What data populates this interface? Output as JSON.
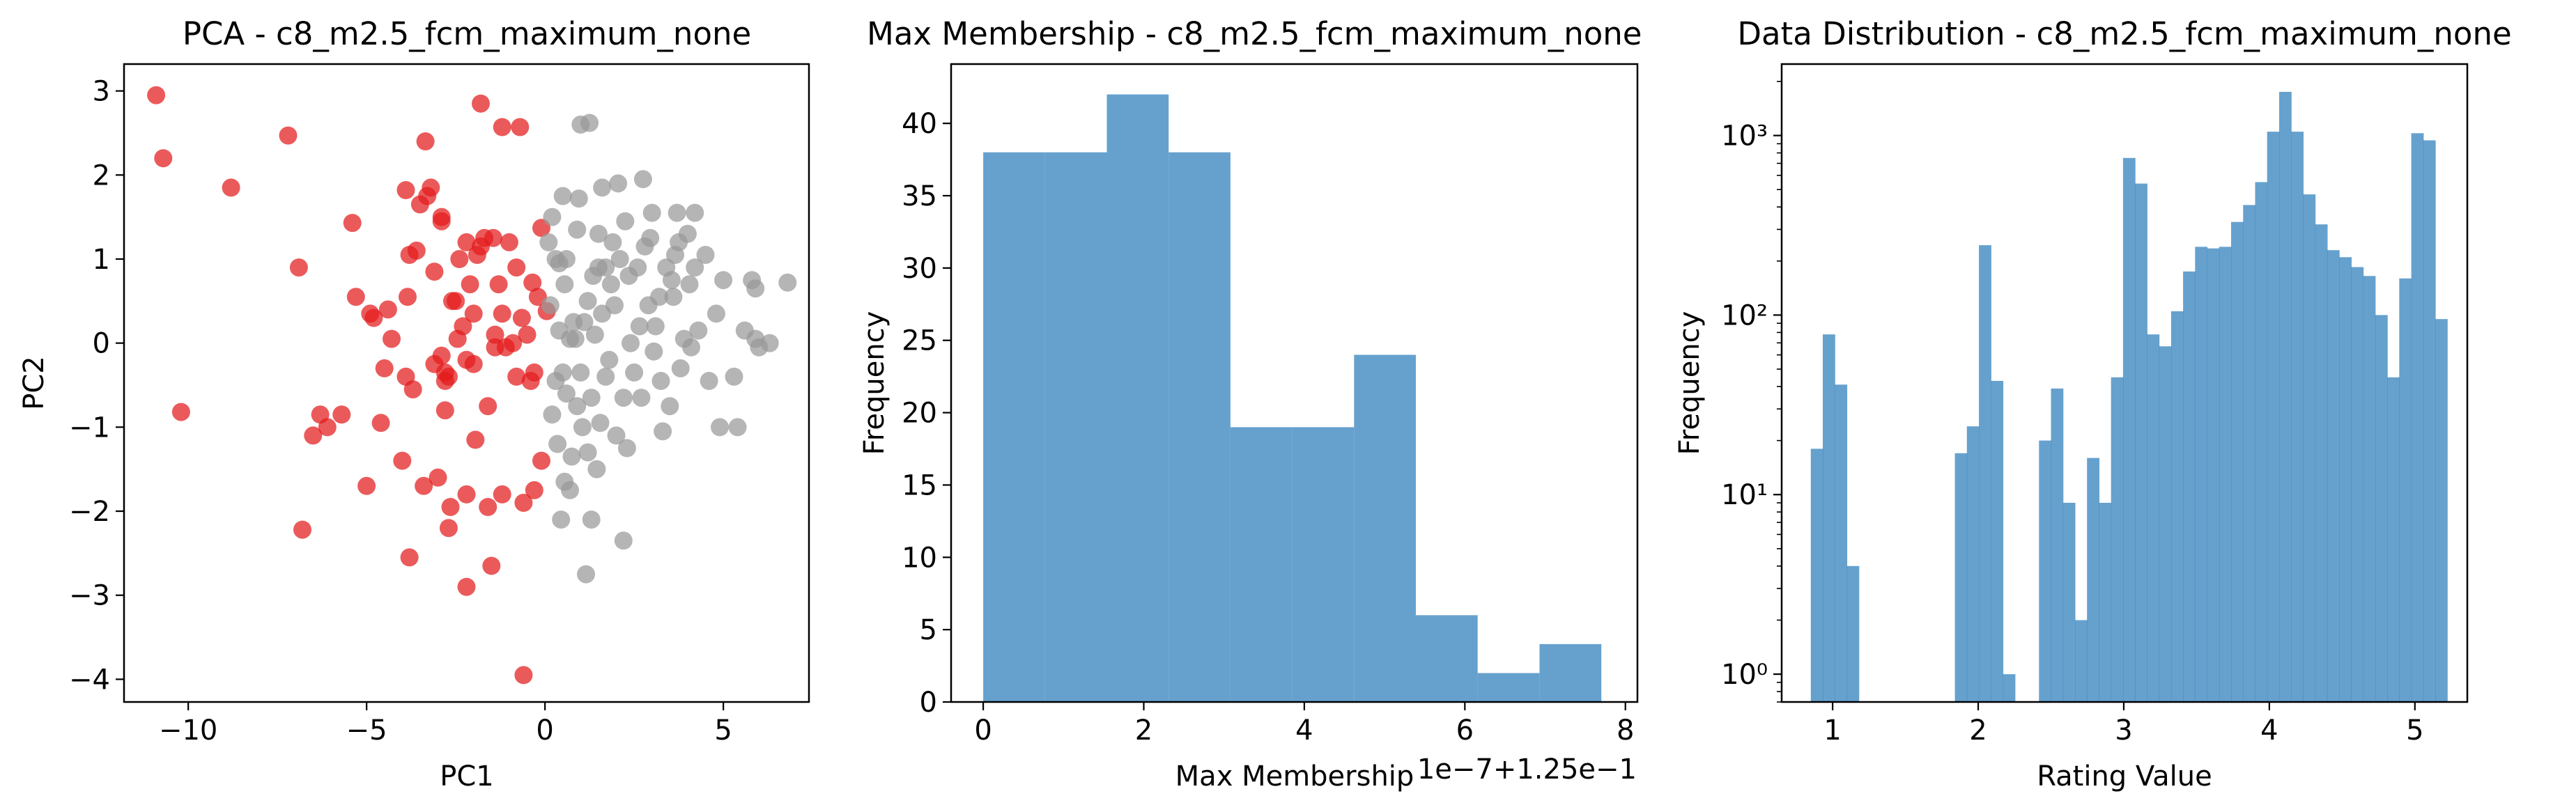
{
  "figure": {
    "colors": {
      "red": "#e31a1c",
      "gray": "#999999",
      "blue": "#3b87c0"
    }
  },
  "chart_data": [
    {
      "type": "scatter",
      "title": "PCA - c8_m2.5_fcm_maximum_none",
      "xlabel": "PC1",
      "ylabel": "PC2",
      "xlim": [
        -11.8,
        7.4
      ],
      "ylim": [
        -4.27,
        3.32
      ],
      "xticks": [
        -10,
        -5,
        0,
        5
      ],
      "yticks": [
        -4,
        -3,
        -2,
        -1,
        0,
        1,
        2,
        3
      ],
      "series": [
        {
          "color": "#e31a1c",
          "points": [
            [
              -10.9,
              2.95
            ],
            [
              -10.7,
              2.2
            ],
            [
              -10.2,
              -0.82
            ],
            [
              -8.8,
              1.85
            ],
            [
              -7.2,
              2.47
            ],
            [
              -6.9,
              0.9
            ],
            [
              -6.8,
              -2.22
            ],
            [
              -6.5,
              -1.1
            ],
            [
              -6.3,
              -0.85
            ],
            [
              -6.1,
              -1.0
            ],
            [
              -5.7,
              -0.85
            ],
            [
              -5.4,
              1.43
            ],
            [
              -5.3,
              0.55
            ],
            [
              -5.0,
              -1.7
            ],
            [
              -4.9,
              0.35
            ],
            [
              -4.8,
              0.3
            ],
            [
              -4.6,
              -0.95
            ],
            [
              -4.5,
              -0.3
            ],
            [
              -4.4,
              0.4
            ],
            [
              -4.3,
              0.05
            ],
            [
              -4.0,
              -1.4
            ],
            [
              -3.9,
              -0.4
            ],
            [
              -3.85,
              0.55
            ],
            [
              -3.8,
              1.05
            ],
            [
              -3.8,
              -2.55
            ],
            [
              -3.7,
              -0.55
            ],
            [
              -3.6,
              1.1
            ],
            [
              -3.9,
              1.82
            ],
            [
              -3.5,
              1.65
            ],
            [
              -3.4,
              -1.7
            ],
            [
              -3.35,
              2.4
            ],
            [
              -3.3,
              1.75
            ],
            [
              -3.2,
              1.85
            ],
            [
              -3.1,
              -0.25
            ],
            [
              -3.1,
              0.85
            ],
            [
              -3.0,
              -1.6
            ],
            [
              -2.9,
              -0.15
            ],
            [
              -2.9,
              1.45
            ],
            [
              -2.9,
              1.5
            ],
            [
              -2.8,
              -0.35
            ],
            [
              -2.8,
              -0.45
            ],
            [
              -2.8,
              -0.8
            ],
            [
              -2.7,
              -0.4
            ],
            [
              -2.7,
              -2.2
            ],
            [
              -2.65,
              -1.95
            ],
            [
              -2.6,
              0.5
            ],
            [
              -2.5,
              0.5
            ],
            [
              -2.45,
              0.05
            ],
            [
              -2.4,
              1.0
            ],
            [
              -2.3,
              0.2
            ],
            [
              -2.2,
              -1.8
            ],
            [
              -2.2,
              -2.9
            ],
            [
              -2.2,
              -0.2
            ],
            [
              -2.2,
              1.2
            ],
            [
              -2.1,
              0.7
            ],
            [
              -2.0,
              0.35
            ],
            [
              -2.0,
              -0.25
            ],
            [
              -1.95,
              -1.15
            ],
            [
              -1.9,
              1.05
            ],
            [
              -1.8,
              1.15
            ],
            [
              -1.8,
              2.85
            ],
            [
              -1.7,
              1.25
            ],
            [
              -1.6,
              -1.95
            ],
            [
              -1.6,
              -0.75
            ],
            [
              -1.5,
              -2.65
            ],
            [
              -1.45,
              1.25
            ],
            [
              -1.4,
              0.1
            ],
            [
              -1.4,
              -0.05
            ],
            [
              -1.3,
              0.7
            ],
            [
              -1.2,
              -1.8
            ],
            [
              -1.2,
              2.57
            ],
            [
              -1.2,
              0.35
            ],
            [
              -1.1,
              -0.05
            ],
            [
              -1.0,
              1.2
            ],
            [
              -0.9,
              0.0
            ],
            [
              -0.8,
              -0.4
            ],
            [
              -0.8,
              0.9
            ],
            [
              -0.7,
              2.57
            ],
            [
              -0.65,
              0.3
            ],
            [
              -0.6,
              -1.9
            ],
            [
              -0.5,
              0.1
            ],
            [
              -0.4,
              -0.45
            ],
            [
              -0.3,
              -0.35
            ],
            [
              -0.2,
              0.55
            ],
            [
              -0.1,
              1.37
            ],
            [
              -0.1,
              -1.4
            ],
            [
              -0.6,
              -3.95
            ],
            [
              -0.3,
              -1.75
            ],
            [
              0.05,
              0.38
            ],
            [
              -0.35,
              0.72
            ]
          ]
        },
        {
          "color": "#999999",
          "points": [
            [
              0.1,
              1.2
            ],
            [
              0.2,
              1.5
            ],
            [
              0.15,
              0.45
            ],
            [
              0.2,
              -0.85
            ],
            [
              0.3,
              -0.45
            ],
            [
              0.3,
              1.0
            ],
            [
              0.35,
              -1.2
            ],
            [
              0.4,
              0.15
            ],
            [
              0.4,
              0.95
            ],
            [
              0.45,
              -2.1
            ],
            [
              0.5,
              -0.35
            ],
            [
              0.5,
              1.75
            ],
            [
              0.55,
              -1.65
            ],
            [
              0.55,
              0.7
            ],
            [
              0.6,
              1.0
            ],
            [
              0.6,
              -0.6
            ],
            [
              0.7,
              -1.75
            ],
            [
              0.7,
              0.05
            ],
            [
              0.75,
              -1.35
            ],
            [
              0.8,
              0.25
            ],
            [
              0.9,
              1.35
            ],
            [
              0.9,
              -0.75
            ],
            [
              0.95,
              1.72
            ],
            [
              1.0,
              -0.35
            ],
            [
              1.05,
              -1.0
            ],
            [
              1.0,
              2.6
            ],
            [
              1.1,
              0.25
            ],
            [
              1.15,
              -2.75
            ],
            [
              1.2,
              -1.3
            ],
            [
              1.2,
              0.5
            ],
            [
              1.25,
              2.62
            ],
            [
              1.3,
              -0.65
            ],
            [
              1.3,
              -2.1
            ],
            [
              1.35,
              0.8
            ],
            [
              1.4,
              0.1
            ],
            [
              1.45,
              -1.5
            ],
            [
              1.5,
              1.3
            ],
            [
              1.55,
              -0.95
            ],
            [
              1.6,
              0.35
            ],
            [
              1.6,
              1.85
            ],
            [
              1.7,
              0.9
            ],
            [
              1.7,
              -0.4
            ],
            [
              1.8,
              -0.2
            ],
            [
              1.9,
              1.2
            ],
            [
              1.95,
              0.45
            ],
            [
              2.0,
              -1.1
            ],
            [
              2.05,
              1.9
            ],
            [
              2.1,
              1.0
            ],
            [
              2.2,
              -0.65
            ],
            [
              2.2,
              -2.35
            ],
            [
              2.25,
              1.45
            ],
            [
              2.3,
              -1.25
            ],
            [
              2.35,
              0.8
            ],
            [
              2.4,
              0.0
            ],
            [
              2.5,
              -0.35
            ],
            [
              2.6,
              0.9
            ],
            [
              2.7,
              -0.65
            ],
            [
              2.75,
              1.95
            ],
            [
              2.8,
              1.15
            ],
            [
              2.9,
              0.45
            ],
            [
              3.0,
              1.55
            ],
            [
              3.05,
              -0.1
            ],
            [
              3.1,
              0.2
            ],
            [
              3.2,
              0.55
            ],
            [
              3.25,
              -0.45
            ],
            [
              3.3,
              -1.05
            ],
            [
              3.4,
              0.9
            ],
            [
              3.5,
              -0.75
            ],
            [
              3.6,
              0.55
            ],
            [
              3.65,
              1.05
            ],
            [
              3.7,
              1.55
            ],
            [
              3.75,
              1.2
            ],
            [
              3.8,
              -0.3
            ],
            [
              3.9,
              0.05
            ],
            [
              4.0,
              1.3
            ],
            [
              4.05,
              0.7
            ],
            [
              4.1,
              -0.05
            ],
            [
              4.2,
              1.55
            ],
            [
              4.3,
              0.15
            ],
            [
              4.5,
              1.05
            ],
            [
              4.6,
              -0.45
            ],
            [
              4.8,
              0.35
            ],
            [
              4.9,
              -1.0
            ],
            [
              5.0,
              0.75
            ],
            [
              5.3,
              -0.4
            ],
            [
              5.4,
              -1.0
            ],
            [
              5.6,
              0.15
            ],
            [
              5.8,
              0.75
            ],
            [
              5.9,
              0.65
            ],
            [
              6.0,
              -0.05
            ],
            [
              6.3,
              0.0
            ],
            [
              6.8,
              0.72
            ],
            [
              5.9,
              0.05
            ],
            [
              4.2,
              0.9
            ],
            [
              1.5,
              0.9
            ],
            [
              0.85,
              0.05
            ],
            [
              2.65,
              0.2
            ],
            [
              3.55,
              0.75
            ],
            [
              1.85,
              0.7
            ],
            [
              2.95,
              1.25
            ]
          ]
        }
      ]
    },
    {
      "type": "bar",
      "title": "Max Membership - c8_m2.5_fcm_maximum_none",
      "xlabel": "Max Membership",
      "ylabel": "Frequency",
      "offset_text": "1e−7+1.25e−1",
      "xlim": [
        -0.4,
        8.15
      ],
      "ylim": [
        0,
        44.1
      ],
      "xticks": [
        0,
        2,
        4,
        6,
        8
      ],
      "yticks": [
        0,
        5,
        10,
        15,
        20,
        25,
        30,
        35,
        40
      ],
      "bin_edges": [
        0.0,
        0.77,
        1.54,
        2.31,
        3.08,
        3.85,
        4.62,
        5.39,
        6.16,
        6.93,
        7.7
      ],
      "values": [
        38,
        38,
        42,
        38,
        19,
        19,
        24,
        6,
        2,
        4
      ]
    },
    {
      "type": "bar",
      "title": "Data Distribution - c8_m2.5_fcm_maximum_none",
      "xlabel": "Rating Value",
      "ylabel": "Frequency",
      "yscale": "log",
      "xlim": [
        0.65,
        5.36
      ],
      "ylim": [
        0.7,
        2500
      ],
      "xticks": [
        1,
        2,
        3,
        4,
        5
      ],
      "yticks": [
        "10⁰",
        "10¹",
        "10²",
        "10³"
      ],
      "bin_start": 0.85,
      "bin_width": 0.0825,
      "values": [
        18,
        78,
        41,
        4,
        0,
        0,
        0,
        0,
        0,
        0,
        0,
        0,
        17,
        24,
        245,
        43,
        1,
        0,
        0,
        20,
        39,
        9,
        2,
        16,
        9,
        45,
        750,
        540,
        78,
        67,
        105,
        175,
        240,
        235,
        240,
        330,
        410,
        550,
        1050,
        1750,
        1050,
        470,
        320,
        230,
        210,
        185,
        165,
        100,
        45,
        160,
        1030,
        940,
        95
      ]
    }
  ]
}
